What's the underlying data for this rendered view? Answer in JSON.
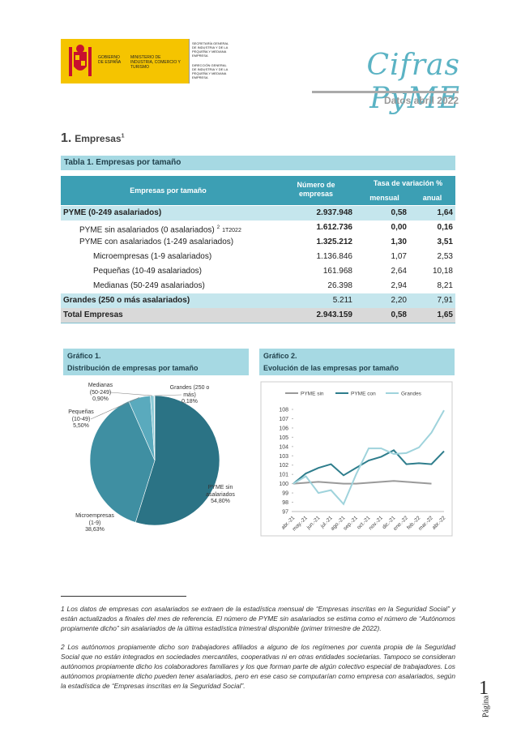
{
  "header": {
    "gov": "GOBIERNO DE ESPAÑA",
    "ministry": "MINISTERIO DE INDUSTRIA, COMERCIO Y TURISMO",
    "secretaria": "SECRETARÍA GENERAL DE INDUSTRIA Y DE LA PEQUEÑA Y MEDIANA EMPRESA",
    "direccion": "DIRECCIÓN GENERAL DE INDUSTRIA Y DE LA PEQUEÑA Y MEDIANA EMPRESA",
    "title": "Cifras PyME",
    "subtitle": "Datos abril 2022"
  },
  "section": {
    "number": "1.",
    "title": "Empresas",
    "note": "1"
  },
  "table": {
    "title": "Tabla 1. Empresas por tamaño",
    "header": {
      "label": "Empresas por tamaño",
      "count": "Número de empresas",
      "rate": "Tasa de variación %",
      "monthly": "mensual",
      "annual": "anual"
    },
    "rows": [
      {
        "label": "PYME (0-249 asalariados)",
        "values": [
          "2.937.948",
          "0,58",
          "1,64"
        ]
      },
      {
        "label": "PYME sin  asalariados (0 asalariados)",
        "note": "2",
        "period": "1T2022",
        "values": [
          "1.612.736",
          "0,00",
          "0,16"
        ]
      },
      {
        "label": "PYME con asalariados (1-249 asalariados)",
        "values": [
          "1.325.212",
          "1,30",
          "3,51"
        ]
      },
      {
        "label": "Microempresas (1-9 asalariados)",
        "values": [
          "1.136.846",
          "1,07",
          "2,53"
        ]
      },
      {
        "label": "Pequeñas (10-49 asalariados)",
        "values": [
          "161.968",
          "2,64",
          "10,18"
        ]
      },
      {
        "label": "Medianas (50-249 asalariados)",
        "values": [
          "26.398",
          "2,94",
          "8,21"
        ]
      },
      {
        "label": "Grandes (250 o más asalariados)",
        "values": [
          "5.211",
          "2,20",
          "7,91"
        ]
      },
      {
        "label": "Total Empresas",
        "values": [
          "2.943.159",
          "0,58",
          "1,65"
        ]
      }
    ]
  },
  "chart_data": [
    {
      "type": "pie",
      "label": "Gráfico 1.",
      "title": "Distribución de empresas por tamaño",
      "categories": [
        "PYME sin asalariados",
        "Microempresas (1-9)",
        "Pequeñas (10-49)",
        "Medianas (50-249)",
        "Grandes (250 o más)"
      ],
      "values": [
        54.8,
        38.63,
        5.5,
        0.9,
        0.18
      ],
      "value_labels": [
        "54,80%",
        "38,63%",
        "5,50%",
        "0,90%",
        "0,18%"
      ],
      "colors": [
        "#2b7385",
        "#3f8fa2",
        "#5aaabd",
        "#8ccad6",
        "#c9e7ed"
      ]
    },
    {
      "type": "line",
      "label": "Gráfico 2.",
      "title": "Evolución de las empresas por tamaño",
      "categories": [
        "abr.-21",
        "may.-21",
        "jun.-21",
        "jul.-21",
        "ago.-21",
        "sep.-21",
        "oct.-21",
        "nov.-21",
        "dic.-21",
        "ene.-22",
        "feb.-22",
        "mar.-22",
        "abr.-22"
      ],
      "series": [
        {
          "name": "PYME sin",
          "color": "#9a9a9a",
          "values": [
            100,
            100.1,
            100.2,
            100.1,
            100.0,
            100.0,
            100.1,
            100.2,
            100.3,
            100.2,
            100.1,
            100.0,
            null
          ]
        },
        {
          "name": "PYME con",
          "color": "#2e7d8c",
          "values": [
            100,
            101.1,
            101.7,
            102.1,
            100.9,
            101.7,
            102.5,
            102.9,
            103.6,
            102.1,
            102.2,
            102.1,
            103.5
          ]
        },
        {
          "name": "Grandes",
          "color": "#9fd3dc",
          "values": [
            100,
            100.8,
            99.0,
            99.3,
            97.8,
            101.0,
            103.8,
            103.8,
            103.2,
            103.3,
            103.9,
            105.5,
            107.9
          ]
        }
      ],
      "ylim": [
        97,
        108
      ],
      "yticks": [
        97,
        98,
        99,
        100,
        101,
        102,
        103,
        104,
        105,
        106,
        107,
        108
      ],
      "grid": false
    }
  ],
  "footnotes": [
    {
      "number": "1",
      "text": "Los datos de empresas con asalariados se extraen de la estadística mensual de “Empresas inscritas en la Seguridad Social” y están actualizados a finales del mes de referencia. El número de PYME sin asalariados se estima como el número de “Autónomos propiamente dicho” sin asalariados de la última estadística trimestral disponible (primer trimestre de 2022)."
    },
    {
      "number": "2",
      "text": "Los autónomos propiamente dicho son trabajadores afiliados a alguno de los regímenes por cuenta propia de la Seguridad Social que no están integrados en sociedades mercantiles, cooperativas ni en otras entidades societarias. Tampoco se consideran autónomos propiamente dicho los colaboradores familiares y los que forman parte de algún colectivo especial de trabajadores. Los autónomos propiamente dicho pueden tener asalariados, pero en ese caso se computarían como empresa con asalariados, según la estadística de “Empresas inscritas en la Seguridad Social”."
    }
  ],
  "page": {
    "label": "Página",
    "number": "1"
  }
}
